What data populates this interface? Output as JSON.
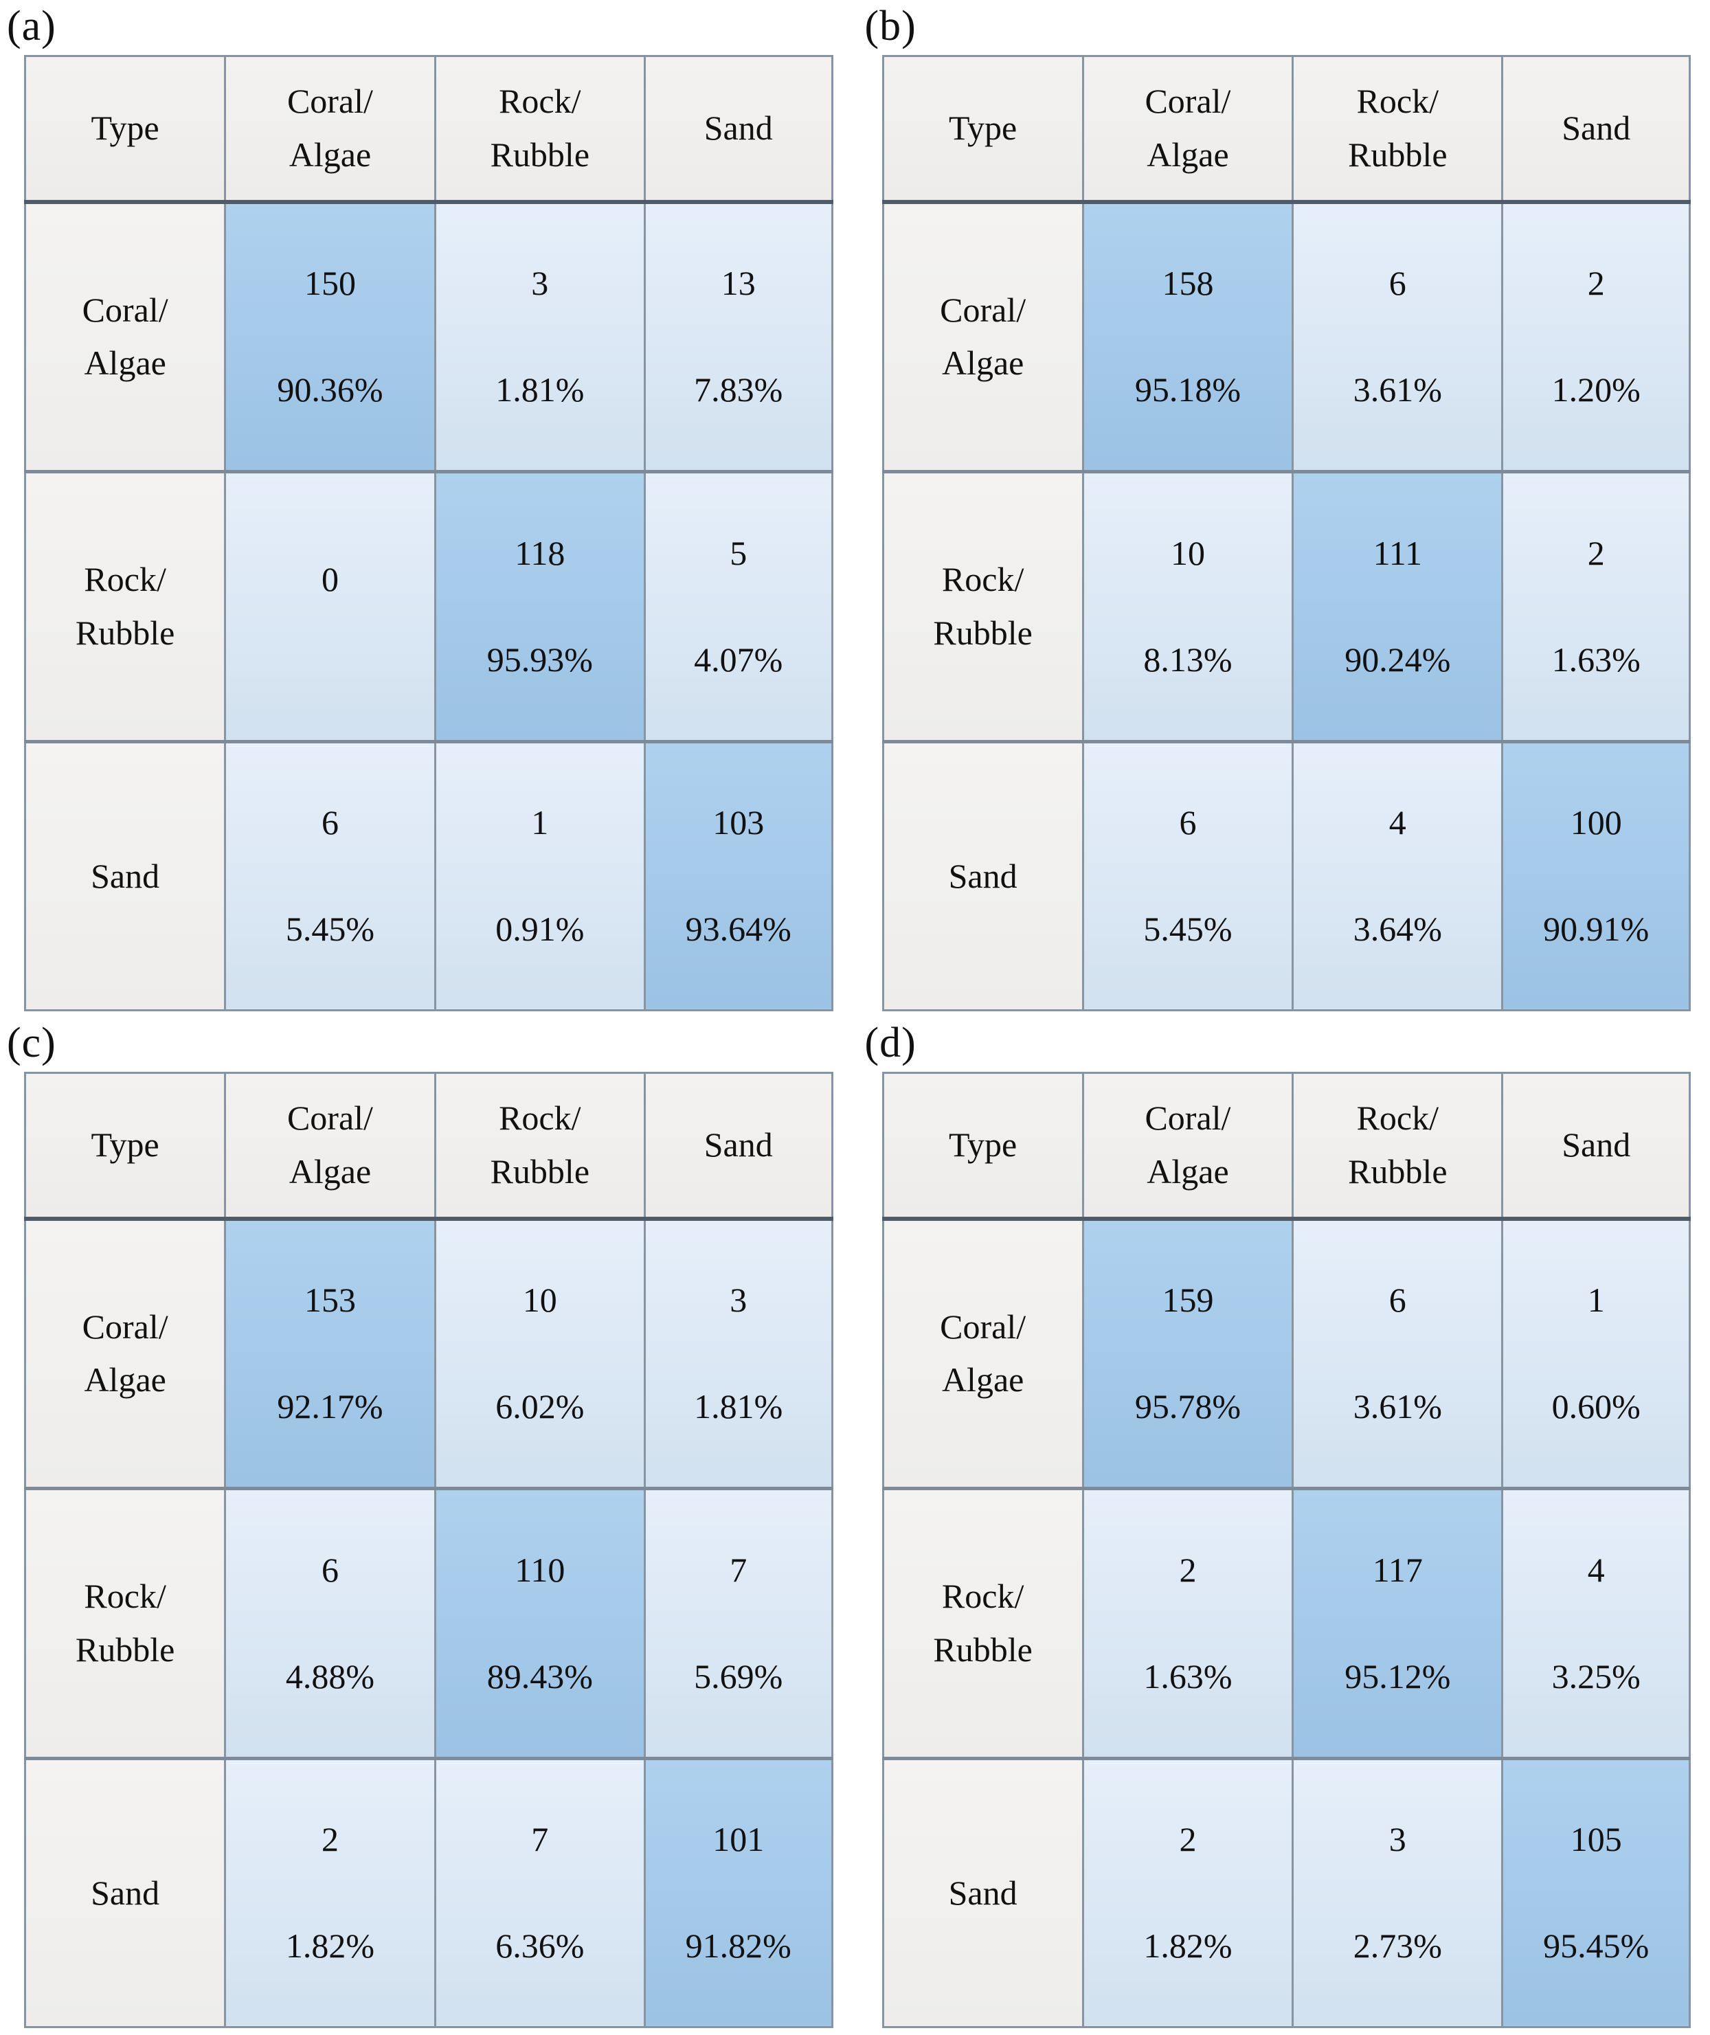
{
  "colors": {
    "diagonal_cell": "#a9cdeb",
    "off_diagonal_cell": "#dbe7f4",
    "header_cell": "#f1f0ee",
    "grid_line": "#7e8a97",
    "text": "#111111"
  },
  "chart_data": [
    {
      "type": "table",
      "subtype": "confusion-matrix-heatmap",
      "panel_label": "(a)",
      "col_headers": [
        "Type",
        "Coral/\nAlgae",
        "Rock/\nRubble",
        "Sand"
      ],
      "row_headers": [
        "Coral/\nAlgae",
        "Rock/\nRubble",
        "Sand"
      ],
      "counts": [
        [
          150,
          3,
          13
        ],
        [
          0,
          118,
          5
        ],
        [
          6,
          1,
          103
        ]
      ],
      "percents": [
        [
          90.36,
          1.81,
          7.83
        ],
        [
          null,
          95.93,
          4.07
        ],
        [
          5.45,
          0.91,
          93.64
        ]
      ],
      "cells": [
        [
          {
            "count": "150",
            "pct": "90.36%"
          },
          {
            "count": "3",
            "pct": "1.81%"
          },
          {
            "count": "13",
            "pct": "7.83%"
          }
        ],
        [
          {
            "count": "0",
            "pct": ""
          },
          {
            "count": "118",
            "pct": "95.93%"
          },
          {
            "count": "5",
            "pct": "4.07%"
          }
        ],
        [
          {
            "count": "6",
            "pct": "5.45%"
          },
          {
            "count": "1",
            "pct": "0.91%"
          },
          {
            "count": "103",
            "pct": "93.64%"
          }
        ]
      ]
    },
    {
      "type": "table",
      "subtype": "confusion-matrix-heatmap",
      "panel_label": "(b)",
      "col_headers": [
        "Type",
        "Coral/\nAlgae",
        "Rock/\nRubble",
        "Sand"
      ],
      "row_headers": [
        "Coral/\nAlgae",
        "Rock/\nRubble",
        "Sand"
      ],
      "counts": [
        [
          158,
          6,
          2
        ],
        [
          10,
          111,
          2
        ],
        [
          6,
          4,
          100
        ]
      ],
      "percents": [
        [
          95.18,
          3.61,
          1.2
        ],
        [
          8.13,
          90.24,
          1.63
        ],
        [
          5.45,
          3.64,
          90.91
        ]
      ],
      "cells": [
        [
          {
            "count": "158",
            "pct": "95.18%"
          },
          {
            "count": "6",
            "pct": "3.61%"
          },
          {
            "count": "2",
            "pct": "1.20%"
          }
        ],
        [
          {
            "count": "10",
            "pct": "8.13%"
          },
          {
            "count": "111",
            "pct": "90.24%"
          },
          {
            "count": "2",
            "pct": "1.63%"
          }
        ],
        [
          {
            "count": "6",
            "pct": "5.45%"
          },
          {
            "count": "4",
            "pct": "3.64%"
          },
          {
            "count": "100",
            "pct": "90.91%"
          }
        ]
      ]
    },
    {
      "type": "table",
      "subtype": "confusion-matrix-heatmap",
      "panel_label": "(c)",
      "col_headers": [
        "Type",
        "Coral/\nAlgae",
        "Rock/\nRubble",
        "Sand"
      ],
      "row_headers": [
        "Coral/\nAlgae",
        "Rock/\nRubble",
        "Sand"
      ],
      "counts": [
        [
          153,
          10,
          3
        ],
        [
          6,
          110,
          7
        ],
        [
          2,
          7,
          101
        ]
      ],
      "percents": [
        [
          92.17,
          6.02,
          1.81
        ],
        [
          4.88,
          89.43,
          5.69
        ],
        [
          1.82,
          6.36,
          91.82
        ]
      ],
      "cells": [
        [
          {
            "count": "153",
            "pct": "92.17%"
          },
          {
            "count": "10",
            "pct": "6.02%"
          },
          {
            "count": "3",
            "pct": "1.81%"
          }
        ],
        [
          {
            "count": "6",
            "pct": "4.88%"
          },
          {
            "count": "110",
            "pct": "89.43%"
          },
          {
            "count": "7",
            "pct": "5.69%"
          }
        ],
        [
          {
            "count": "2",
            "pct": "1.82%"
          },
          {
            "count": "7",
            "pct": "6.36%"
          },
          {
            "count": "101",
            "pct": "91.82%"
          }
        ]
      ]
    },
    {
      "type": "table",
      "subtype": "confusion-matrix-heatmap",
      "panel_label": "(d)",
      "col_headers": [
        "Type",
        "Coral/\nAlgae",
        "Rock/\nRubble",
        "Sand"
      ],
      "row_headers": [
        "Coral/\nAlgae",
        "Rock/\nRubble",
        "Sand"
      ],
      "counts": [
        [
          159,
          6,
          1
        ],
        [
          2,
          117,
          4
        ],
        [
          2,
          3,
          105
        ]
      ],
      "percents": [
        [
          95.78,
          3.61,
          0.6
        ],
        [
          1.63,
          95.12,
          3.25
        ],
        [
          1.82,
          2.73,
          95.45
        ]
      ],
      "cells": [
        [
          {
            "count": "159",
            "pct": "95.78%"
          },
          {
            "count": "6",
            "pct": "3.61%"
          },
          {
            "count": "1",
            "pct": "0.60%"
          }
        ],
        [
          {
            "count": "2",
            "pct": "1.63%"
          },
          {
            "count": "117",
            "pct": "95.12%"
          },
          {
            "count": "4",
            "pct": "3.25%"
          }
        ],
        [
          {
            "count": "2",
            "pct": "1.82%"
          },
          {
            "count": "3",
            "pct": "2.73%"
          },
          {
            "count": "105",
            "pct": "95.45%"
          }
        ]
      ]
    }
  ]
}
